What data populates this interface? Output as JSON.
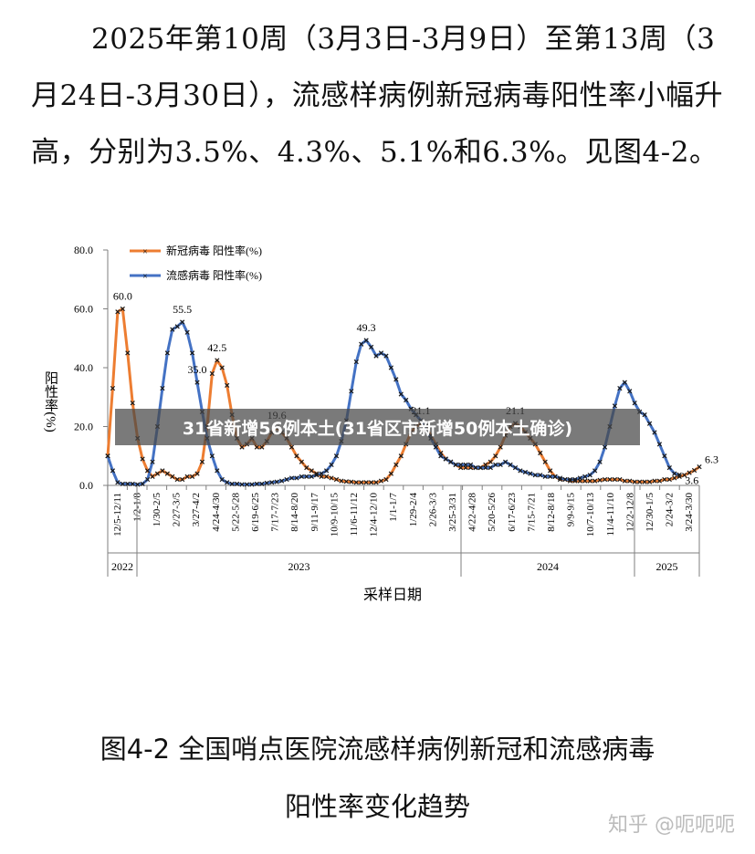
{
  "article": {
    "paragraph": "2025年第10周（3月3日-3月9日）至第13周（3月24日-3月30日），流感样病例新冠病毒阳性率小幅升高，分别为3.5%、4.3%、5.1%和6.3%。见图4-2。",
    "caption_line1": "图4-2  全国哨点医院流感样病例新冠和流感病毒",
    "caption_line2": "阳性率变化趋势"
  },
  "banner": {
    "text": "31省新增56例本土(31省区市新增50例本土确诊)"
  },
  "watermark": {
    "text": "知乎 @呃呃呃"
  },
  "colors": {
    "covid": "#ED7D31",
    "flu": "#4472C4",
    "marker": "#1a1a1a",
    "axis": "#7f7f7f"
  },
  "chart_data": {
    "type": "line",
    "ylabel": "阳性率(%)",
    "xlabel": "采样日期",
    "ylim": [
      0,
      80
    ],
    "yticks": [
      "0.0",
      "20.0",
      "40.0",
      "60.0",
      "80.0"
    ],
    "legend": "top-left",
    "xtick_labels": [
      "12/5-12/11",
      "1/2-1/8",
      "1/30-2/5",
      "2/27-3/5",
      "3/27-4/2",
      "4/24-4/30",
      "5/22-5/28",
      "6/19-6/25",
      "7/17-7/23",
      "8/14-8/20",
      "9/11-9/17",
      "10/9-10/15",
      "11/6-11/12",
      "12/4-12/10",
      "1/1-1/7",
      "1/29-2/4",
      "2/26-3/3",
      "3/25-3/31",
      "4/22-4/28",
      "5/20-5/26",
      "6/17-6/23",
      "7/15-7/21",
      "8/12-8/18",
      "9/9-9/15",
      "10/7-10/13",
      "11/4-11/10",
      "12/2-12/8",
      "12/30-1/5",
      "2/24-3/2",
      "3/24-3/30"
    ],
    "year_labels": [
      "2022",
      "2023",
      "2024",
      "2025"
    ],
    "annotations": [
      "60.0",
      "55.5",
      "42.5",
      "19.6",
      "49.3",
      "21.1",
      "21.1",
      "35.0",
      "6.3",
      "3.6"
    ],
    "series": [
      {
        "name": "新冠病毒 阳性率(%)",
        "values": [
          10,
          33,
          59,
          60,
          45,
          28,
          16,
          9,
          5,
          3,
          4,
          5,
          4,
          3,
          2,
          2,
          3,
          3,
          4,
          8,
          20,
          38,
          42.5,
          40,
          34,
          24,
          16,
          13,
          14,
          16,
          13,
          13,
          15,
          18,
          19.6,
          18,
          16,
          13,
          10,
          8,
          6,
          5,
          4,
          3,
          3,
          2.5,
          2,
          1.5,
          1.3,
          1.2,
          1,
          1,
          1,
          1,
          1,
          1.5,
          2,
          4,
          7,
          10,
          14,
          18,
          20,
          21.1,
          20,
          17,
          14,
          11,
          9,
          8,
          7,
          6,
          6,
          6,
          6,
          6,
          7,
          8,
          10,
          13,
          17,
          20,
          21.1,
          20,
          18,
          16,
          14,
          11,
          8,
          5,
          3,
          2,
          2,
          1.5,
          1.5,
          1.5,
          1.5,
          1.5,
          1.5,
          1.8,
          2,
          2,
          2,
          2,
          1.5,
          1.5,
          1.2,
          1.2,
          1.2,
          1.2,
          1.5,
          1.5,
          2,
          2,
          2.5,
          3,
          3.5,
          4.3,
          5.1,
          6.3
        ]
      },
      {
        "name": "流感病毒 阳性率(%)",
        "values": [
          10,
          5,
          1,
          0.5,
          0.5,
          0.5,
          0.3,
          0.5,
          2,
          8,
          20,
          33,
          45,
          53,
          54,
          55.5,
          52,
          45,
          35,
          25,
          16,
          10,
          5,
          2,
          1,
          0.5,
          0.5,
          0.3,
          0.3,
          0.3,
          0.5,
          0.5,
          0.8,
          1,
          1.2,
          1.5,
          2,
          2.5,
          2.5,
          3,
          3,
          3,
          3.5,
          4,
          5,
          7,
          10,
          15,
          22,
          32,
          42,
          48,
          49.3,
          47,
          44,
          45,
          44,
          40,
          36,
          31,
          29,
          26,
          24,
          22,
          19,
          16,
          13,
          10,
          9,
          8,
          7,
          7,
          7,
          7,
          6,
          6,
          6,
          6,
          7,
          7,
          8,
          7,
          6,
          5,
          4.5,
          4,
          3.5,
          3.5,
          3,
          3,
          3,
          2.5,
          2,
          2,
          2,
          2.5,
          3,
          3.5,
          5,
          8,
          13,
          20,
          27,
          33,
          35,
          32,
          28,
          25,
          24,
          21,
          18,
          14,
          10,
          6,
          4,
          3.6
        ]
      }
    ]
  }
}
